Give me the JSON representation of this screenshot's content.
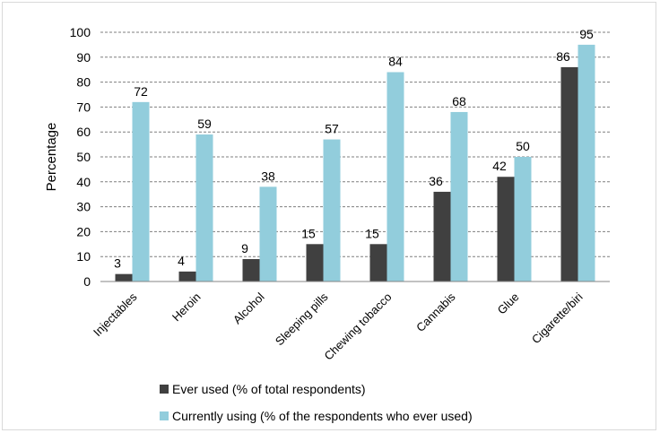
{
  "chart_data": {
    "type": "bar",
    "title": "",
    "xlabel": "",
    "ylabel": "Percentage",
    "ylim": [
      0,
      100
    ],
    "yticks": [
      0,
      10,
      20,
      30,
      40,
      50,
      60,
      70,
      80,
      90,
      100
    ],
    "grid": true,
    "legend_position": "bottom",
    "categories": [
      "Injectables",
      "Heroin",
      "Alcohol",
      "Sleeping pills",
      "Chewing tobacco",
      "Cannabis",
      "Glue",
      "Cigarette/biri"
    ],
    "series": [
      {
        "name": "Ever used (% of total respondents)",
        "color": "#404040",
        "values": [
          3,
          4,
          9,
          15,
          15,
          36,
          42,
          86
        ]
      },
      {
        "name": "Currently using (% of the respondents who ever used)",
        "color": "#92cddc",
        "values": [
          72,
          59,
          38,
          57,
          84,
          68,
          50,
          95
        ]
      }
    ]
  }
}
